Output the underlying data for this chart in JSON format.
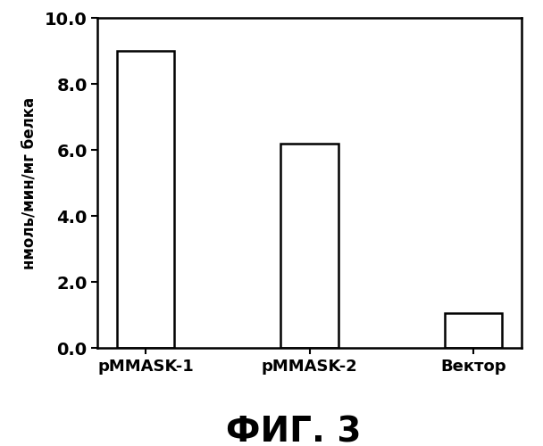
{
  "categories": [
    "pMMASK-1",
    "pMMASK-2",
    "Вектор"
  ],
  "values": [
    9.0,
    6.2,
    1.05
  ],
  "bar_color": "#ffffff",
  "bar_edgecolor": "#000000",
  "bar_linewidth": 1.8,
  "ylabel": "нмоль/мин/мг белка",
  "ylim": [
    0,
    10.0
  ],
  "yticks": [
    0.0,
    2.0,
    4.0,
    6.0,
    8.0,
    10.0
  ],
  "figcaption": "ФИГ. 3",
  "background_color": "#ffffff",
  "spine_linewidth": 1.8,
  "bar_width": 0.35,
  "tick_fontsize": 14,
  "ylabel_fontsize": 12,
  "caption_fontsize": 28,
  "xlabel_fontsize": 13
}
